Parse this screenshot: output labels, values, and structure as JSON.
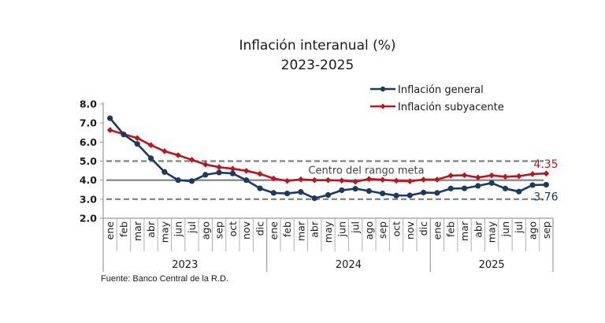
{
  "chart_data": {
    "type": "line",
    "title": "Inflación interanual (%)",
    "subtitle": "2023-2025",
    "xlabel": "",
    "ylabel": "",
    "ylim": [
      2.0,
      8.0
    ],
    "yticks": [
      "8.0",
      "7.0",
      "6.0",
      "5.0",
      "4.0",
      "3.0",
      "2.0"
    ],
    "ytick_values": [
      8,
      7,
      6,
      5,
      4,
      3,
      2
    ],
    "grid": false,
    "legend_position": "top-right",
    "categories": [
      "ene",
      "feb",
      "mar",
      "abr",
      "may",
      "jun",
      "jul",
      "ago",
      "sep",
      "oct",
      "nov",
      "dic",
      "ene",
      "feb",
      "mar",
      "abr",
      "may",
      "jun",
      "jul",
      "ago",
      "sep",
      "oct",
      "nov",
      "dic",
      "ene",
      "feb",
      "mar",
      "abr",
      "may",
      "jun",
      "jul",
      "ago",
      "sep"
    ],
    "year_groups": [
      {
        "label": "2023",
        "count": 12
      },
      {
        "label": "2024",
        "count": 12
      },
      {
        "label": "2025",
        "count": 9
      }
    ],
    "series": [
      {
        "name": "Inflación general",
        "color": "#1b3a63",
        "marker": "circle",
        "values": [
          7.25,
          6.4,
          5.9,
          5.15,
          4.43,
          4.0,
          3.95,
          4.28,
          4.4,
          4.35,
          4.0,
          3.57,
          3.33,
          3.3,
          3.38,
          3.05,
          3.22,
          3.47,
          3.55,
          3.43,
          3.3,
          3.19,
          3.2,
          3.35,
          3.33,
          3.56,
          3.57,
          3.7,
          3.85,
          3.56,
          3.4,
          3.74,
          3.76
        ],
        "end_label": "3.76"
      },
      {
        "name": "Inflación subyacente",
        "color": "#c0141c",
        "marker": "diamond",
        "values": [
          6.63,
          6.42,
          6.21,
          5.84,
          5.52,
          5.31,
          5.07,
          4.82,
          4.68,
          4.6,
          4.49,
          4.33,
          4.09,
          3.96,
          4.04,
          4.0,
          4.0,
          3.98,
          3.92,
          4.06,
          4.02,
          3.97,
          3.94,
          4.03,
          4.03,
          4.24,
          4.26,
          4.14,
          4.25,
          4.18,
          4.21,
          4.32,
          4.35
        ],
        "end_label": "4.35"
      }
    ],
    "reference_lines": [
      {
        "value": 5.0,
        "style": "dashed",
        "color": "#7f7f7f"
      },
      {
        "value": 4.0,
        "style": "solid",
        "color": "#7f7f7f",
        "label": "Centro del rango meta"
      },
      {
        "value": 3.0,
        "style": "dashed",
        "color": "#7f7f7f"
      }
    ],
    "source": "Fuente: Banco Central de la R.D."
  }
}
